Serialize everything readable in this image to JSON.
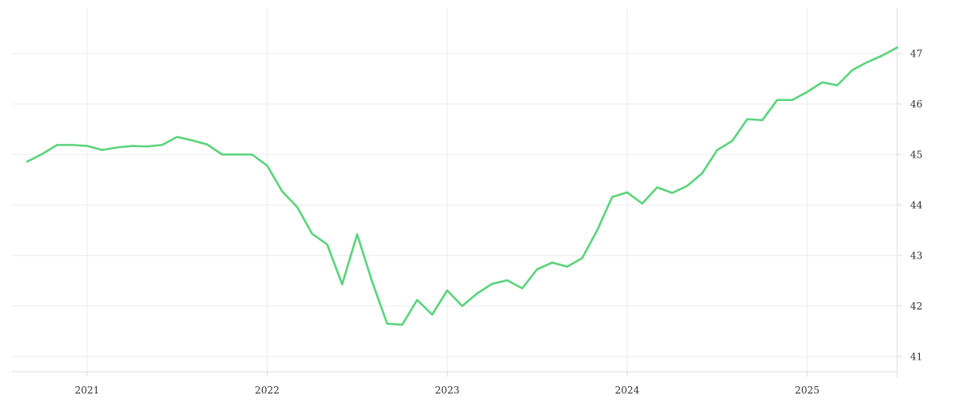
{
  "chart_data": {
    "type": "line",
    "title": "",
    "xlabel": "",
    "ylabel": "",
    "grid": true,
    "legend": "none",
    "line_color": "#5ad47b",
    "x_ticks": [
      "2021",
      "2022",
      "2023",
      "2024",
      "2025"
    ],
    "x_tick_dates": [
      "2021-01",
      "2022-01",
      "2023-01",
      "2024-01",
      "2025-01"
    ],
    "y_ticks": [
      41,
      42,
      43,
      44,
      45,
      46,
      47
    ],
    "xlim": [
      "2020-08",
      "2025-07"
    ],
    "ylim": [
      40.7,
      47.9
    ],
    "series": [
      {
        "x": [
          "2020-09",
          "2020-10",
          "2020-11",
          "2020-12",
          "2021-01",
          "2021-02",
          "2021-03",
          "2021-04",
          "2021-05",
          "2021-06",
          "2021-07",
          "2021-08",
          "2021-09",
          "2021-10",
          "2021-11",
          "2021-12",
          "2022-01",
          "2022-02",
          "2022-03",
          "2022-04",
          "2022-05",
          "2022-06",
          "2022-07",
          "2022-08",
          "2022-09",
          "2022-10",
          "2022-11",
          "2022-12",
          "2023-01",
          "2023-02",
          "2023-03",
          "2023-04",
          "2023-05",
          "2023-06",
          "2023-07",
          "2023-08",
          "2023-09",
          "2023-10",
          "2023-11",
          "2023-12",
          "2024-01",
          "2024-02",
          "2024-03",
          "2024-04",
          "2024-05",
          "2024-06",
          "2024-07",
          "2024-08",
          "2024-09",
          "2024-10",
          "2024-11",
          "2024-12",
          "2025-01",
          "2025-02",
          "2025-03",
          "2025-04",
          "2025-05",
          "2025-06",
          "2025-07"
        ],
        "y": [
          44.86,
          45.01,
          45.19,
          45.19,
          45.17,
          45.09,
          45.14,
          45.17,
          45.16,
          45.19,
          45.35,
          45.28,
          45.2,
          45.0,
          45.0,
          45.0,
          44.78,
          44.27,
          43.96,
          43.43,
          43.22,
          42.43,
          43.42,
          42.48,
          41.65,
          41.63,
          42.12,
          41.83,
          42.31,
          42.0,
          42.25,
          42.44,
          42.51,
          42.35,
          42.73,
          42.86,
          42.78,
          42.95,
          43.5,
          44.16,
          44.25,
          44.03,
          44.35,
          44.24,
          44.38,
          44.63,
          45.09,
          45.27,
          45.7,
          45.68,
          46.08,
          46.08,
          46.24,
          46.43,
          46.37,
          46.67,
          46.83,
          46.96,
          47.12
        ]
      }
    ]
  }
}
